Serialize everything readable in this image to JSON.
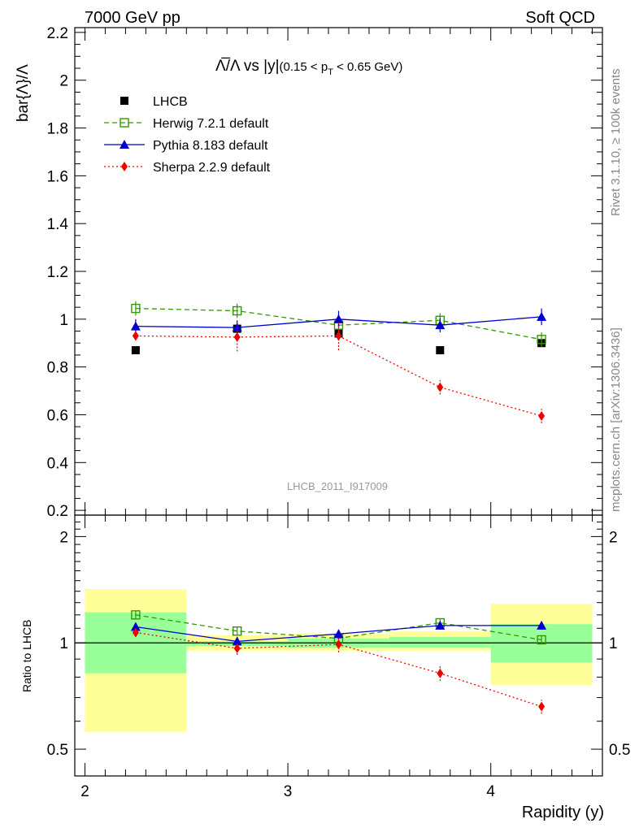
{
  "header": {
    "left": "7000 GeV pp",
    "right": "Soft QCD"
  },
  "side_labels": {
    "rivet": "Rivet 3.1.10, ≥ 100k events",
    "mcplots": "mcplots.cern.ch [arXiv:1306.3436]"
  },
  "watermark": "LHCB_2011_I917009",
  "chart_data": {
    "type": "scatter",
    "title": {
      "main": "Λ̅/Λ vs |y|",
      "cut_open": "(0.15 < p",
      "cut_sub": "T",
      "cut_close": " < 0.65 GeV)"
    },
    "xlabel": "Rapidity (y)",
    "ylabel": "bar{Λ}/Λ",
    "ratio_ylabel": "Ratio to LHCB",
    "xlim": [
      1.95,
      4.55
    ],
    "ylim": [
      0.18,
      2.22
    ],
    "ratio_ylim": [
      0.42,
      2.3
    ],
    "x_ticks": [
      {
        "value": 2,
        "label": "2"
      },
      {
        "value": 3,
        "label": "3"
      },
      {
        "value": 4,
        "label": "4"
      }
    ],
    "y_ticks": [
      {
        "value": 0.2,
        "label": "0.2"
      },
      {
        "value": 0.4,
        "label": "0.4"
      },
      {
        "value": 0.6,
        "label": "0.6"
      },
      {
        "value": 0.8,
        "label": "0.8"
      },
      {
        "value": 1.0,
        "label": "1"
      },
      {
        "value": 1.2,
        "label": "1.2"
      },
      {
        "value": 1.4,
        "label": "1.4"
      },
      {
        "value": 1.6,
        "label": "1.6"
      },
      {
        "value": 1.8,
        "label": "1.8"
      },
      {
        "value": 2.0,
        "label": "2"
      },
      {
        "value": 2.2,
        "label": "2.2"
      }
    ],
    "ratio_ticks": [
      {
        "value": 0.5,
        "label": "0.5"
      },
      {
        "value": 1,
        "label": "1"
      },
      {
        "value": 2,
        "label": "2"
      }
    ],
    "bins": [
      {
        "lo": 2.0,
        "hi": 2.5,
        "center": 2.25
      },
      {
        "lo": 2.5,
        "hi": 3.0,
        "center": 2.75
      },
      {
        "lo": 3.0,
        "hi": 3.5,
        "center": 3.25
      },
      {
        "lo": 3.5,
        "hi": 4.0,
        "center": 3.75
      },
      {
        "lo": 4.0,
        "hi": 4.5,
        "center": 4.25
      }
    ],
    "ratio_bands": {
      "green": [
        {
          "lo": 0.82,
          "hi": 1.22
        },
        {
          "lo": 0.98,
          "hi": 1.01
        },
        {
          "lo": 0.97,
          "hi": 1.03
        },
        {
          "lo": 0.97,
          "hi": 1.04
        },
        {
          "lo": 0.88,
          "hi": 1.13
        }
      ],
      "yellow": [
        {
          "lo": 0.56,
          "hi": 1.42
        },
        {
          "lo": 0.95,
          "hi": 1.05
        },
        {
          "lo": 0.95,
          "hi": 1.06
        },
        {
          "lo": 0.95,
          "hi": 1.08
        },
        {
          "lo": 0.76,
          "hi": 1.29
        }
      ]
    },
    "series": [
      {
        "name": "LHCB",
        "color": "#000000",
        "marker": "square-filled",
        "line": "none",
        "y": [
          0.87,
          0.96,
          0.94,
          0.87,
          0.9
        ],
        "err": [
          0.0,
          0.02,
          0.02,
          0.0,
          0.01
        ],
        "ratio": [
          1.0,
          1.0,
          1.0,
          1.0,
          1.0
        ],
        "ratio_err": [
          0.0,
          0.0,
          0.0,
          0.0,
          0.0
        ]
      },
      {
        "name": "Herwig 7.2.1 default",
        "color": "#339900",
        "marker": "square-open",
        "line": "dashed",
        "y": [
          1.045,
          1.035,
          0.975,
          0.995,
          0.915
        ],
        "err": [
          0.03,
          0.03,
          0.03,
          0.03,
          0.03
        ],
        "ratio": [
          1.2,
          1.08,
          1.03,
          1.14,
          1.02
        ],
        "ratio_err": [
          0.03,
          0.03,
          0.03,
          0.03,
          0.03
        ]
      },
      {
        "name": "Pythia 8.183 default",
        "color": "#0000cc",
        "marker": "triangle-filled",
        "line": "solid",
        "y": [
          0.97,
          0.965,
          1.0,
          0.975,
          1.01
        ],
        "err": [
          0.03,
          0.03,
          0.035,
          0.03,
          0.035
        ],
        "ratio": [
          1.11,
          1.01,
          1.06,
          1.12,
          1.12
        ],
        "ratio_err": [
          0.03,
          0.03,
          0.03,
          0.03,
          0.03
        ]
      },
      {
        "name": "Sherpa 2.2.9 default",
        "color": "#ee0000",
        "marker": "diamond-filled",
        "line": "dotted",
        "y": [
          0.93,
          0.925,
          0.93,
          0.715,
          0.595
        ],
        "err": [
          0.02,
          0.06,
          0.06,
          0.03,
          0.03
        ],
        "ratio": [
          1.07,
          0.965,
          0.99,
          0.82,
          0.66
        ],
        "ratio_err": [
          0.03,
          0.04,
          0.05,
          0.04,
          0.03
        ]
      }
    ]
  }
}
